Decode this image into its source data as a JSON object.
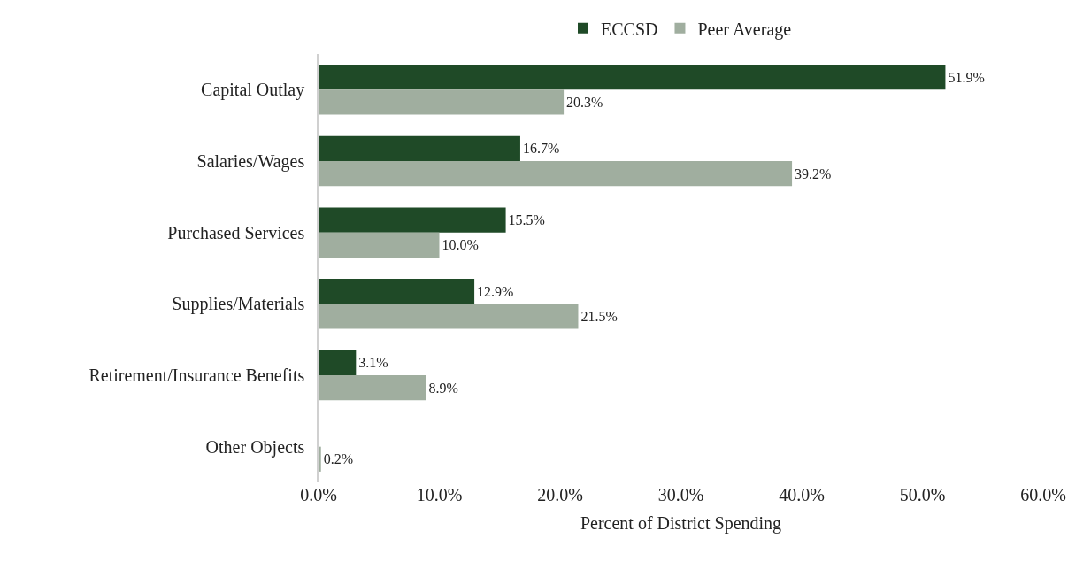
{
  "chart_data": {
    "type": "bar",
    "orientation": "horizontal",
    "xlabel": "Percent of District Spending",
    "categories": [
      "Capital Outlay",
      "Salaries/Wages",
      "Purchased Services",
      "Supplies/Materials",
      "Retirement/Insurance Benefits",
      "Other Objects"
    ],
    "series": [
      {
        "name": "ECCSD",
        "color": "#1f4a27",
        "values": [
          51.9,
          16.7,
          15.5,
          12.9,
          3.1,
          null
        ],
        "value_labels": [
          "51.9%",
          "16.7%",
          "15.5%",
          "12.9%",
          "3.1%",
          null
        ]
      },
      {
        "name": "Peer Average",
        "color": "#a0ae9f",
        "values": [
          20.3,
          39.2,
          10.0,
          21.5,
          8.9,
          0.2
        ],
        "value_labels": [
          "20.3%",
          "39.2%",
          "10.0%",
          "21.5%",
          "8.9%",
          "0.2%"
        ]
      }
    ],
    "xlim": [
      0,
      60
    ],
    "xticks": [
      {
        "value": 0,
        "label": "0.0%"
      },
      {
        "value": 10,
        "label": "10.0%"
      },
      {
        "value": 20,
        "label": "20.0%"
      },
      {
        "value": 30,
        "label": "30.0%"
      },
      {
        "value": 40,
        "label": "40.0%"
      },
      {
        "value": 50,
        "label": "50.0%"
      },
      {
        "value": 60,
        "label": "60.0%"
      }
    ],
    "grid": false,
    "legend": "top"
  }
}
